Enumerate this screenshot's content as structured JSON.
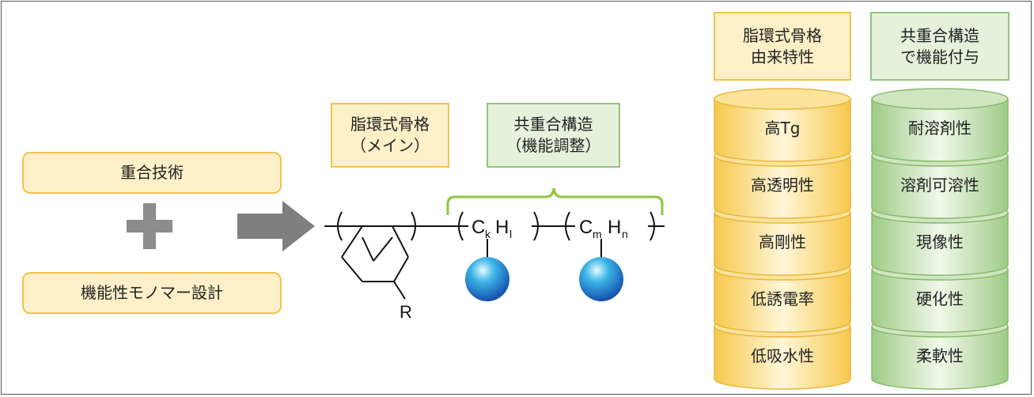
{
  "left": {
    "technique": "重合技術",
    "monomer": "機能性モノマー設計"
  },
  "structure": {
    "main_label": "脂環式骨格\n（メイン）",
    "copolymer_label": "共重合構造\n（機能調整）",
    "substituent": "R",
    "unit1": {
      "C": "C",
      "sub1": "k",
      "H": "H",
      "sub2": "l"
    },
    "unit2": {
      "C": "C",
      "sub1": "m",
      "H": "H",
      "sub2": "n"
    }
  },
  "columns": {
    "alicyclic_header": "脂環式骨格\n由来特性",
    "copolymer_header": "共重合構造\nで機能付与",
    "alicyclic_items": [
      "高Tg",
      "高透明性",
      "高剛性",
      "低誘電率",
      "低吸水性"
    ],
    "copolymer_items": [
      "耐溶剤性",
      "溶剤可溶性",
      "現像性",
      "硬化性",
      "柔軟性"
    ]
  },
  "colors": {
    "yellow_fill": "#fdf0c8",
    "yellow_border": "#f2c24f",
    "green_fill": "#e6f1dc",
    "green_border": "#93c47d",
    "arrow": "#7f7f7f",
    "sphere": "#1f78c8"
  }
}
